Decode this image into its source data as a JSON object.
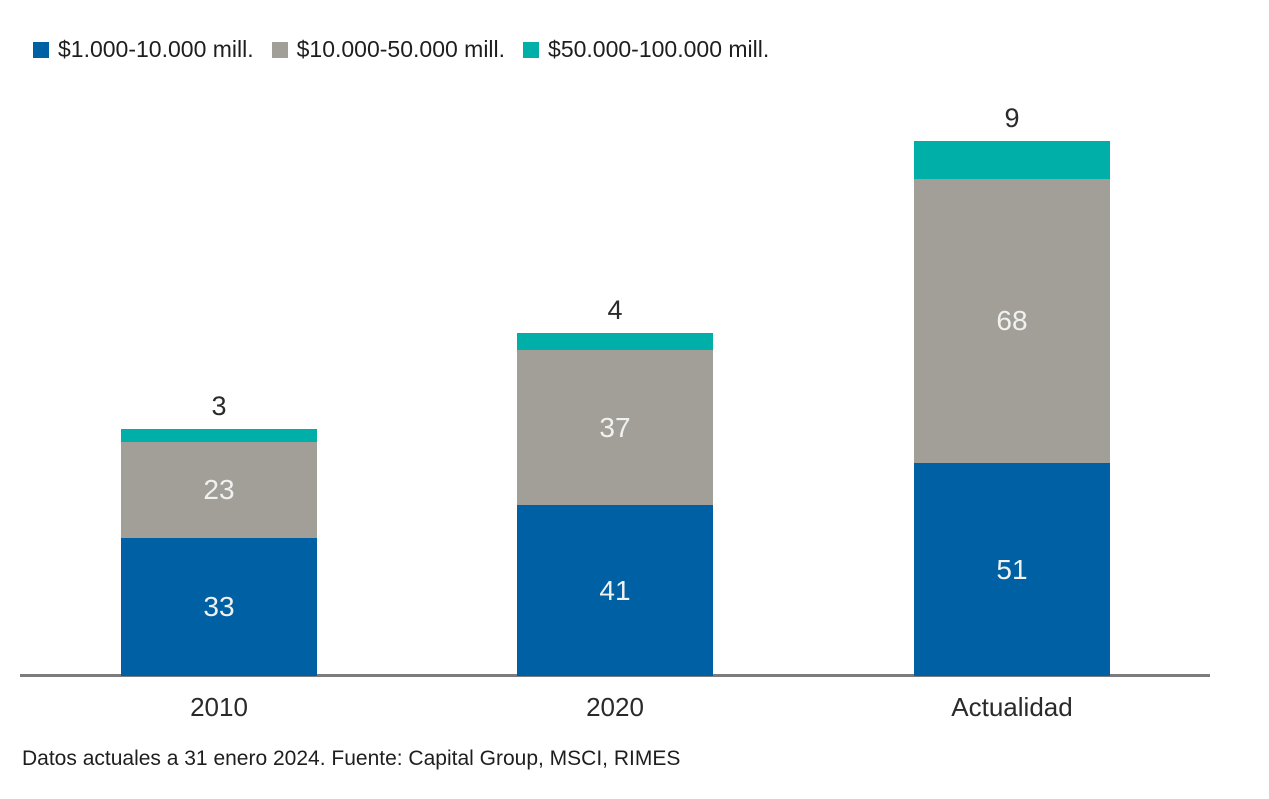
{
  "chart_data": {
    "type": "bar",
    "stacked": true,
    "orientation": "vertical",
    "categories": [
      "2010",
      "2020",
      "Actualidad"
    ],
    "series": [
      {
        "name": "$1.000-10.000 mill.",
        "color": "#0060a4",
        "values": [
          33,
          41,
          51
        ]
      },
      {
        "name": "$10.000-50.000 mill.",
        "color": "#a19f98",
        "values": [
          23,
          37,
          68
        ]
      },
      {
        "name": "$50.000-100.000 mill.",
        "color": "#00afa7",
        "values": [
          3,
          4,
          9
        ]
      }
    ],
    "totals": [
      59,
      82,
      128
    ],
    "top_labels": [
      3,
      4,
      9
    ],
    "legend_position": "top-left",
    "grid": false,
    "y_axis_visible": false,
    "x_axis_line_color": "#7c7c7c",
    "inside_label_color": "#f1f1f0",
    "outside_label_color": "#2a2a2a",
    "footnote": "Datos actuales a 31 enero 2024. Fuente: Capital Group, MSCI, RIMES"
  }
}
